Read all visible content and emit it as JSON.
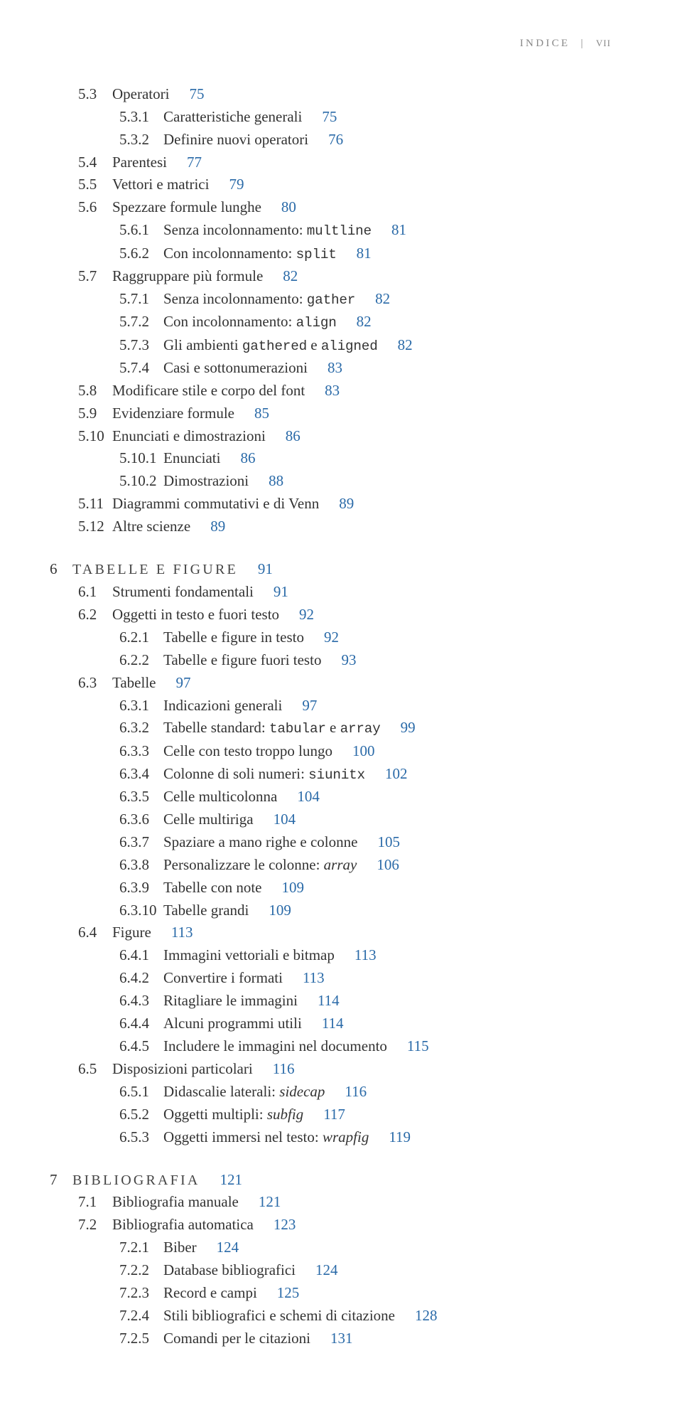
{
  "header": {
    "left": "INDICE",
    "roman": "VII"
  },
  "link_color": "#2a6aa8",
  "chapters": [
    {
      "entries": [
        {
          "lvl": 1,
          "num": "5.3",
          "title": "Operatori",
          "page": "75"
        },
        {
          "lvl": 2,
          "num": "5.3.1",
          "title": "Caratteristiche generali",
          "page": "75"
        },
        {
          "lvl": 2,
          "num": "5.3.2",
          "title": "Definire nuovi operatori",
          "page": "76"
        },
        {
          "lvl": 1,
          "num": "5.4",
          "title": "Parentesi",
          "page": "77"
        },
        {
          "lvl": 1,
          "num": "5.5",
          "title": "Vettori e matrici",
          "page": "79"
        },
        {
          "lvl": 1,
          "num": "5.6",
          "title": "Spezzare formule lunghe",
          "page": "80"
        },
        {
          "lvl": 2,
          "num": "5.6.1",
          "title": "Senza incolonnamento: ",
          "code": "multline",
          "page": "81"
        },
        {
          "lvl": 2,
          "num": "5.6.2",
          "title": "Con incolonnamento: ",
          "code": "split",
          "page": "81"
        },
        {
          "lvl": 1,
          "num": "5.7",
          "title": "Raggruppare più formule",
          "page": "82"
        },
        {
          "lvl": 2,
          "num": "5.7.1",
          "title": "Senza incolonnamento: ",
          "code": "gather",
          "page": "82"
        },
        {
          "lvl": 2,
          "num": "5.7.2",
          "title": "Con incolonnamento: ",
          "code": "align",
          "page": "82"
        },
        {
          "lvl": 2,
          "num": "5.7.3",
          "title_parts": [
            {
              "t": "Gli ambienti "
            },
            {
              "t": "gathered",
              "code": true
            },
            {
              "t": " e "
            },
            {
              "t": "aligned",
              "code": true
            }
          ],
          "page": "82"
        },
        {
          "lvl": 2,
          "num": "5.7.4",
          "title": "Casi e sottonumerazioni",
          "page": "83"
        },
        {
          "lvl": 1,
          "num": "5.8",
          "title": "Modificare stile e corpo del font",
          "page": "83"
        },
        {
          "lvl": 1,
          "num": "5.9",
          "title": "Evidenziare formule",
          "page": "85"
        },
        {
          "lvl": 1,
          "num": "5.10",
          "title": "Enunciati e dimostrazioni",
          "page": "86"
        },
        {
          "lvl": 2,
          "num": "5.10.1",
          "title": "Enunciati",
          "page": "86"
        },
        {
          "lvl": 2,
          "num": "5.10.2",
          "title": "Dimostrazioni",
          "page": "88"
        },
        {
          "lvl": 1,
          "num": "5.11",
          "title": "Diagrammi commutativi e di Venn",
          "page": "89"
        },
        {
          "lvl": 1,
          "num": "5.12",
          "title": "Altre scienze",
          "page": "89"
        }
      ]
    },
    {
      "chap_num": "6",
      "chap_title": "TABELLE E FIGURE",
      "chap_page": "91",
      "entries": [
        {
          "lvl": 1,
          "num": "6.1",
          "title": "Strumenti fondamentali",
          "page": "91"
        },
        {
          "lvl": 1,
          "num": "6.2",
          "title": "Oggetti in testo e fuori testo",
          "page": "92"
        },
        {
          "lvl": 2,
          "num": "6.2.1",
          "title": "Tabelle e figure in testo",
          "page": "92"
        },
        {
          "lvl": 2,
          "num": "6.2.2",
          "title": "Tabelle e figure fuori testo",
          "page": "93"
        },
        {
          "lvl": 1,
          "num": "6.3",
          "title": "Tabelle",
          "page": "97"
        },
        {
          "lvl": 2,
          "num": "6.3.1",
          "title": "Indicazioni generali",
          "page": "97"
        },
        {
          "lvl": 2,
          "num": "6.3.2",
          "title_parts": [
            {
              "t": "Tabelle standard: "
            },
            {
              "t": "tabular",
              "code": true
            },
            {
              "t": " e "
            },
            {
              "t": "array",
              "code": true
            }
          ],
          "page": "99"
        },
        {
          "lvl": 2,
          "num": "6.3.3",
          "title": "Celle con testo troppo lungo",
          "page": "100"
        },
        {
          "lvl": 2,
          "num": "6.3.4",
          "title_parts": [
            {
              "t": "Colonne di soli numeri: "
            },
            {
              "t": "siunitx",
              "code": true
            }
          ],
          "page": "102"
        },
        {
          "lvl": 2,
          "num": "6.3.5",
          "title": "Celle multicolonna",
          "page": "104"
        },
        {
          "lvl": 2,
          "num": "6.3.6",
          "title": "Celle multiriga",
          "page": "104"
        },
        {
          "lvl": 2,
          "num": "6.3.7",
          "title": "Spaziare a mano righe e colonne",
          "page": "105"
        },
        {
          "lvl": 2,
          "num": "6.3.8",
          "title_parts": [
            {
              "t": "Personalizzare le colonne: "
            },
            {
              "t": "array",
              "italic": true
            }
          ],
          "page": "106"
        },
        {
          "lvl": 2,
          "num": "6.3.9",
          "title": "Tabelle con note",
          "page": "109"
        },
        {
          "lvl": 2,
          "num": "6.3.10",
          "title": "Tabelle grandi",
          "page": "109"
        },
        {
          "lvl": 1,
          "num": "6.4",
          "title": "Figure",
          "page": "113"
        },
        {
          "lvl": 2,
          "num": "6.4.1",
          "title": "Immagini vettoriali e bitmap",
          "page": "113"
        },
        {
          "lvl": 2,
          "num": "6.4.2",
          "title": "Convertire i formati",
          "page": "113"
        },
        {
          "lvl": 2,
          "num": "6.4.3",
          "title": "Ritagliare le immagini",
          "page": "114"
        },
        {
          "lvl": 2,
          "num": "6.4.4",
          "title": "Alcuni programmi utili",
          "page": "114"
        },
        {
          "lvl": 2,
          "num": "6.4.5",
          "title": "Includere le immagini nel documento",
          "page": "115"
        },
        {
          "lvl": 1,
          "num": "6.5",
          "title": "Disposizioni particolari",
          "page": "116"
        },
        {
          "lvl": 2,
          "num": "6.5.1",
          "title_parts": [
            {
              "t": "Didascalie laterali: "
            },
            {
              "t": "sidecap",
              "italic": true
            }
          ],
          "page": "116"
        },
        {
          "lvl": 2,
          "num": "6.5.2",
          "title_parts": [
            {
              "t": "Oggetti multipli: "
            },
            {
              "t": "subfig",
              "italic": true
            }
          ],
          "page": "117"
        },
        {
          "lvl": 2,
          "num": "6.5.3",
          "title_parts": [
            {
              "t": "Oggetti immersi nel testo: "
            },
            {
              "t": "wrapfig",
              "italic": true
            }
          ],
          "page": "119"
        }
      ]
    },
    {
      "chap_num": "7",
      "chap_title": "BIBLIOGRAFIA",
      "chap_page": "121",
      "entries": [
        {
          "lvl": 1,
          "num": "7.1",
          "title": "Bibliografia manuale",
          "page": "121"
        },
        {
          "lvl": 1,
          "num": "7.2",
          "title": "Bibliografia automatica",
          "page": "123"
        },
        {
          "lvl": 2,
          "num": "7.2.1",
          "title": "Biber",
          "page": "124"
        },
        {
          "lvl": 2,
          "num": "7.2.2",
          "title": "Database bibliografici",
          "page": "124"
        },
        {
          "lvl": 2,
          "num": "7.2.3",
          "title": "Record e campi",
          "page": "125"
        },
        {
          "lvl": 2,
          "num": "7.2.4",
          "title": "Stili bibliografici e schemi di citazione",
          "page": "128"
        },
        {
          "lvl": 2,
          "num": "7.2.5",
          "title": "Comandi per le citazioni",
          "page": "131"
        }
      ]
    }
  ]
}
